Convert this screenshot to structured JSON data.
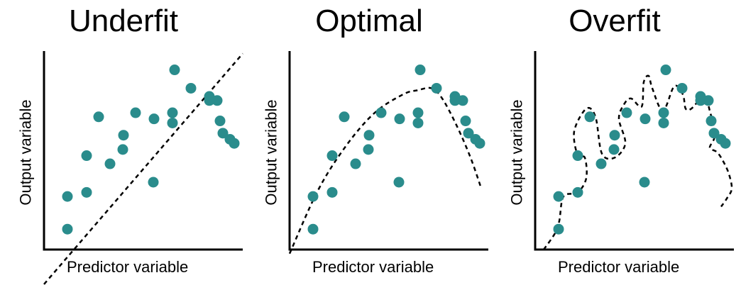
{
  "colors": {
    "point": "#2a8c8c",
    "axis": "#000000",
    "curve": "#000000"
  },
  "chart_data": [
    {
      "type": "scatter",
      "title": "Underfit",
      "xlabel": "Predictor variable",
      "ylabel": "Output variable",
      "points": [
        [
          33,
          10
        ],
        [
          33,
          26
        ],
        [
          60,
          28
        ],
        [
          60,
          46
        ],
        [
          77,
          65
        ],
        [
          93,
          42
        ],
        [
          111,
          49
        ],
        [
          112,
          56
        ],
        [
          129,
          67
        ],
        [
          154,
          33
        ],
        [
          155,
          64
        ],
        [
          181,
          67
        ],
        [
          181,
          62
        ],
        [
          184,
          88
        ],
        [
          207,
          79
        ],
        [
          233,
          73
        ],
        [
          233,
          75
        ],
        [
          244,
          73
        ],
        [
          248,
          63
        ],
        [
          252,
          57
        ],
        [
          262,
          54
        ],
        [
          268,
          52
        ]
      ],
      "fit_line": [
        [
          0,
          -17
        ],
        [
          280,
          96
        ]
      ],
      "fit_style": "dashed"
    },
    {
      "type": "scatter",
      "title": "Optimal",
      "xlabel": "Predictor variable",
      "ylabel": "Output variable",
      "points": [
        [
          33,
          10
        ],
        [
          33,
          26
        ],
        [
          60,
          28
        ],
        [
          60,
          46
        ],
        [
          77,
          65
        ],
        [
          93,
          42
        ],
        [
          111,
          49
        ],
        [
          112,
          56
        ],
        [
          129,
          67
        ],
        [
          154,
          33
        ],
        [
          155,
          64
        ],
        [
          181,
          67
        ],
        [
          181,
          62
        ],
        [
          184,
          88
        ],
        [
          207,
          79
        ],
        [
          233,
          73
        ],
        [
          233,
          75
        ],
        [
          244,
          73
        ],
        [
          248,
          63
        ],
        [
          252,
          57
        ],
        [
          262,
          54
        ],
        [
          268,
          52
        ]
      ],
      "fit_curve": [
        [
          0,
          -2
        ],
        [
          40,
          29
        ],
        [
          80,
          51
        ],
        [
          120,
          67
        ],
        [
          160,
          76
        ],
        [
          180,
          78
        ],
        [
          200,
          79
        ],
        [
          215,
          74
        ],
        [
          235,
          61
        ],
        [
          255,
          45
        ],
        [
          270,
          30
        ]
      ],
      "fit_style": "dashed"
    },
    {
      "type": "scatter",
      "title": "Overfit",
      "xlabel": "Predictor variable",
      "ylabel": "Output variable",
      "points": [
        [
          33,
          10
        ],
        [
          33,
          26
        ],
        [
          60,
          28
        ],
        [
          60,
          46
        ],
        [
          77,
          65
        ],
        [
          93,
          42
        ],
        [
          111,
          49
        ],
        [
          112,
          56
        ],
        [
          129,
          67
        ],
        [
          154,
          33
        ],
        [
          155,
          64
        ],
        [
          181,
          67
        ],
        [
          181,
          62
        ],
        [
          184,
          88
        ],
        [
          207,
          79
        ],
        [
          233,
          73
        ],
        [
          233,
          75
        ],
        [
          244,
          73
        ],
        [
          248,
          63
        ],
        [
          252,
          57
        ],
        [
          262,
          54
        ],
        [
          268,
          52
        ]
      ],
      "fit_curve": [
        [
          12,
          0
        ],
        [
          28,
          8
        ],
        [
          34,
          14
        ],
        [
          40,
          26
        ],
        [
          60,
          28
        ],
        [
          72,
          35
        ],
        [
          70,
          45
        ],
        [
          60,
          46
        ],
        [
          55,
          58
        ],
        [
          72,
          69
        ],
        [
          85,
          65
        ],
        [
          94,
          47
        ],
        [
          112,
          45
        ],
        [
          127,
          52
        ],
        [
          118,
          64
        ],
        [
          125,
          71
        ],
        [
          135,
          74
        ],
        [
          150,
          70
        ],
        [
          153,
          82
        ],
        [
          160,
          85
        ],
        [
          165,
          79
        ],
        [
          180,
          68
        ],
        [
          196,
          80
        ],
        [
          208,
          76
        ],
        [
          212,
          69
        ],
        [
          220,
          69
        ],
        [
          238,
          75
        ],
        [
          246,
          68
        ],
        [
          253,
          56
        ],
        [
          246,
          50
        ],
        [
          255,
          48
        ],
        [
          262,
          45
        ],
        [
          272,
          38
        ],
        [
          277,
          30
        ],
        [
          270,
          25
        ],
        [
          262,
          21
        ]
      ],
      "fit_style": "dashed"
    }
  ]
}
